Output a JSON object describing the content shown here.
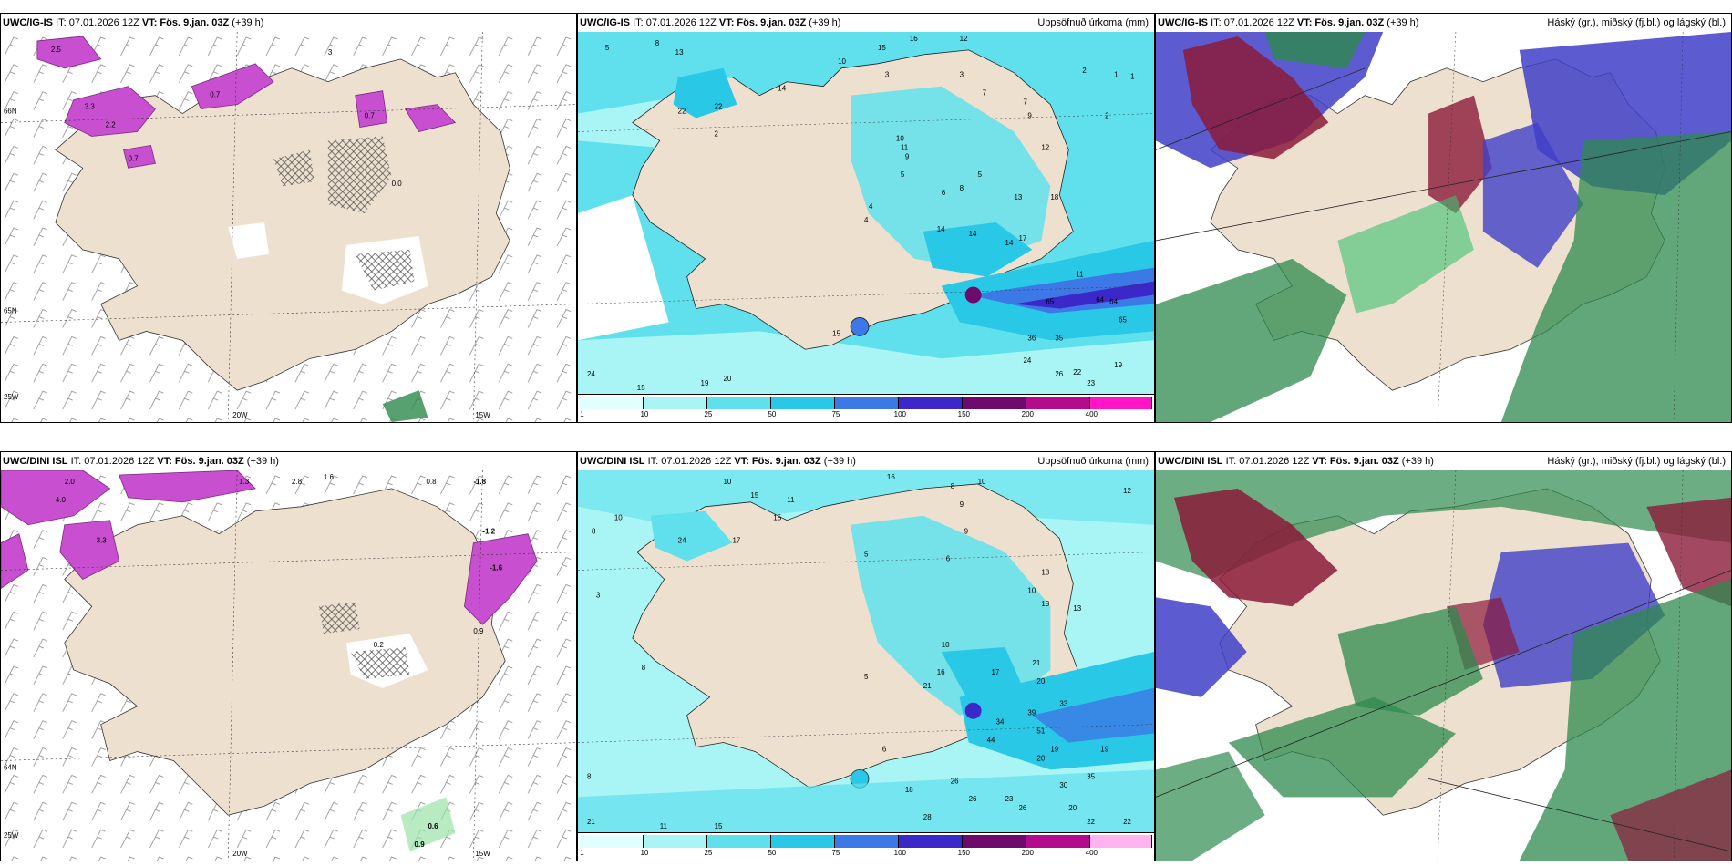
{
  "panels": {
    "p1": {
      "model": "UWC/IG-IS",
      "it": "IT: 07.01.2026 12Z",
      "vt_label": "VT:",
      "vt": "Fös. 9.jan. 03Z",
      "lead": "(+39 h)",
      "right": ""
    },
    "p2": {
      "model": "UWC/IG-IS",
      "it": "IT: 07.01.2026 12Z",
      "vt_label": "VT:",
      "vt": "Fös. 9.jan. 03Z",
      "lead": "(+39 h)",
      "right": "Uppsöfnuð úrkoma (mm)"
    },
    "p3": {
      "model": "UWC/IG-IS",
      "it": "IT: 07.01.2026 12Z",
      "vt_label": "VT:",
      "vt": "Fös. 9.jan. 03Z",
      "lead": "(+39 h)",
      "right": "Háský (gr.), miðský (fj.bl.) og lágský (bl.)"
    },
    "p4": {
      "model": "UWC/DINI ISL",
      "it": "IT: 07.01.2026 12Z",
      "vt_label": "VT:",
      "vt": "Fös. 9.jan. 03Z",
      "lead": "(+39 h)",
      "right": ""
    },
    "p5": {
      "model": "UWC/DINI ISL",
      "it": "IT: 07.01.2026 12Z",
      "vt_label": "VT:",
      "vt": "Fös. 9.jan. 03Z",
      "lead": "(+39 h)",
      "right": "Uppsöfnuð úrkoma (mm)"
    },
    "p6": {
      "model": "UWC/DINI ISL",
      "it": "IT: 07.01.2026 12Z",
      "vt_label": "VT:",
      "vt": "Fös. 9.jan. 03Z",
      "lead": "(+39 h)",
      "right": "Háský (gr.), miðský (fj.bl.) og lágský (bl.)"
    }
  },
  "axes": {
    "lon_20": "20W",
    "lon_15": "15W",
    "lat_66": "66N",
    "lat_64": "64N",
    "lat_65": "65N",
    "lon_25": "25W"
  },
  "colorbar": {
    "ticks": [
      "1",
      "10",
      "25",
      "50",
      "75",
      "100",
      "150",
      "200",
      "400"
    ],
    "colors": [
      "#e0ffff",
      "#a9f5f5",
      "#5fe0ec",
      "#29c8e6",
      "#3c78e6",
      "#3c28c8",
      "#6e0a6e",
      "#b40a8c",
      "#ff14c8",
      "#ffb4f0"
    ]
  },
  "top_temp_labels": [
    "3.3",
    "2.2",
    "0.7",
    "0.7",
    "0.7",
    "0.0",
    "2.5",
    "3"
  ],
  "bottom_temp_labels": [
    "2.0",
    "4.0",
    "3.3",
    "1.3",
    "2.8",
    "1.6",
    "0.8",
    "-1.8",
    "-1.2",
    "-1.6",
    "0.6",
    "0.9",
    "0.2",
    "0.9"
  ],
  "top_precip_labels": [
    "5",
    "8",
    "13",
    "15",
    "16",
    "12",
    "3",
    "10",
    "14",
    "22",
    "22",
    "2",
    "1",
    "3",
    "7",
    "7",
    "2",
    "2",
    "1",
    "9",
    "12",
    "10",
    "5",
    "11",
    "13",
    "5",
    "14",
    "18",
    "14",
    "36",
    "35",
    "24",
    "26",
    "22",
    "23",
    "19",
    "15",
    "19",
    "20",
    "24",
    "15",
    "65",
    "64",
    "64",
    "65",
    "11",
    "4",
    "4",
    "6",
    "17",
    "14",
    "8",
    "9"
  ],
  "bottom_precip_labels": [
    "10",
    "10",
    "8",
    "15",
    "16",
    "11",
    "17",
    "24",
    "15",
    "10",
    "3",
    "5",
    "8",
    "6",
    "12",
    "10",
    "18",
    "18",
    "13",
    "9",
    "16",
    "17",
    "21",
    "20",
    "8",
    "9",
    "10",
    "44",
    "34",
    "39",
    "33",
    "51",
    "28",
    "26",
    "23",
    "20",
    "26",
    "30",
    "19",
    "35",
    "22",
    "22",
    "18",
    "6",
    "11",
    "15",
    "21",
    "21",
    "5",
    "8",
    "19",
    "26",
    "20"
  ],
  "land_color": "#ede0cf",
  "cloud_colors": {
    "high": "#2d8a4e",
    "mid": "#8b1a3a",
    "low": "#4040c8"
  }
}
